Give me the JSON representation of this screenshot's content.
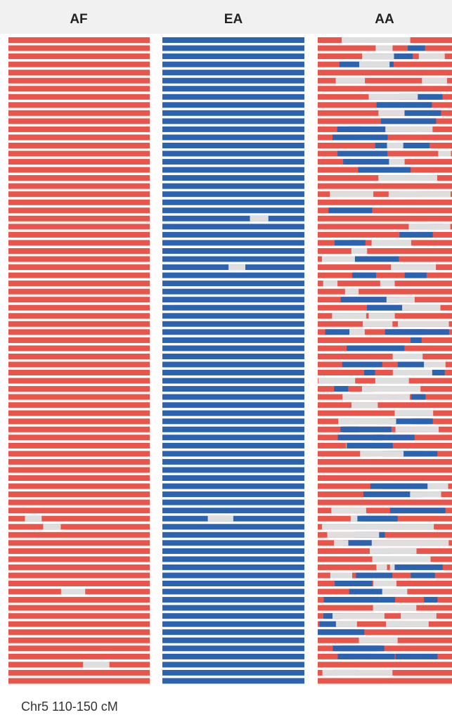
{
  "panels": [
    {
      "label": "AF"
    },
    {
      "label": "EA"
    },
    {
      "label": "AA"
    }
  ],
  "caption": "Chr5 110-150 cM"
}
